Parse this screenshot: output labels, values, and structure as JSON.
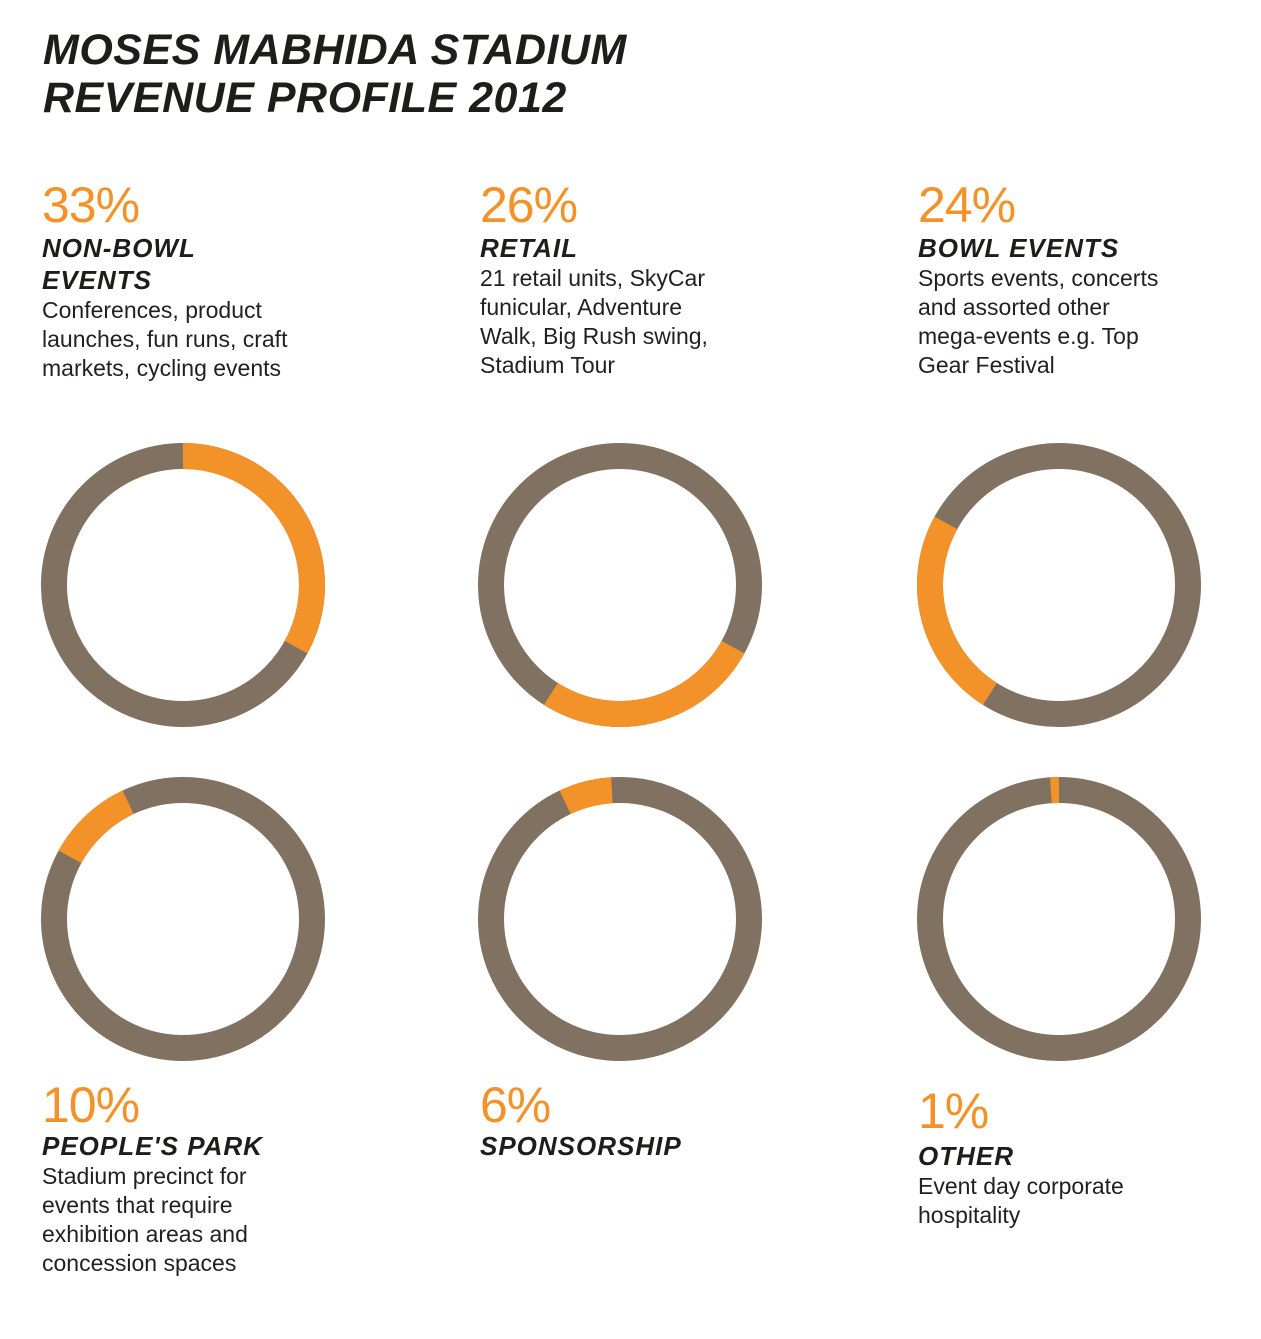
{
  "title": {
    "line1": "MOSES MABHIDA STADIUM",
    "line2": "REVENUE PROFILE 2012"
  },
  "colors": {
    "accent": "#f39229",
    "base": "#817161",
    "text": "#231f20"
  },
  "chart_data": {
    "type": "pie",
    "variant": "donut-small-multiples",
    "title": "MOSES MABHIDA STADIUM REVENUE PROFILE 2012",
    "categories": [
      "NON-BOWL EVENTS",
      "RETAIL",
      "BOWL EVENTS",
      "PEOPLE'S PARK",
      "SPONSORSHIP",
      "OTHER"
    ],
    "values": [
      33,
      26,
      24,
      10,
      6,
      1
    ],
    "items": [
      {
        "percent_label": "33%",
        "value": 33,
        "start_percent": 0,
        "label": "NON-BOWL EVENTS",
        "description": "Conferences, product launches, fun runs, craft markets, cycling events"
      },
      {
        "percent_label": "26%",
        "value": 26,
        "start_percent": 33,
        "label": "RETAIL",
        "description": "21 retail units, SkyCar funicular, Adventure Walk, Big Rush swing, Stadium Tour"
      },
      {
        "percent_label": "24%",
        "value": 24,
        "start_percent": 59,
        "label": "BOWL EVENTS",
        "description": "Sports events, concerts and assorted other mega-events e.g. Top Gear Festival"
      },
      {
        "percent_label": "10%",
        "value": 10,
        "start_percent": 83,
        "label": "PEOPLE'S PARK",
        "description": "Stadium precinct for events that require exhibition areas and concession spaces"
      },
      {
        "percent_label": "6%",
        "value": 6,
        "start_percent": 93,
        "label": "SPONSORSHIP",
        "description": ""
      },
      {
        "percent_label": "1%",
        "value": 1,
        "start_percent": 99,
        "label": "OTHER",
        "description": "Event day corporate hospitality"
      }
    ]
  }
}
